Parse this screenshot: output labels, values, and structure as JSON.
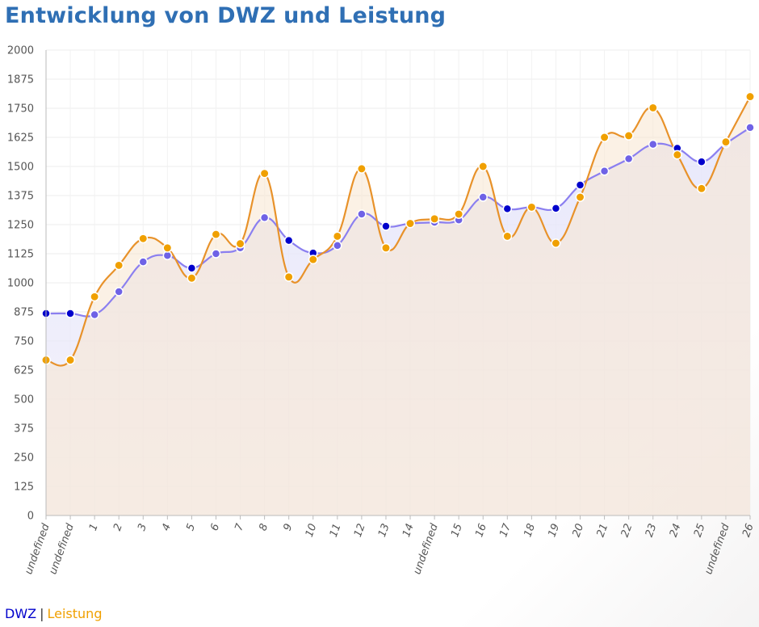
{
  "chart_data": {
    "type": "line",
    "title": "Entwicklung von DWZ und Leistung",
    "xlabel": "",
    "ylabel": "",
    "ylim": [
      0,
      2000
    ],
    "yticks": [
      0,
      125,
      250,
      375,
      500,
      625,
      750,
      875,
      1000,
      1125,
      1250,
      1375,
      1500,
      1625,
      1750,
      1875,
      2000
    ],
    "categories": [
      "undefined",
      "undefined",
      "1",
      "2",
      "3",
      "4",
      "5",
      "6",
      "7",
      "8",
      "9",
      "10",
      "11",
      "12",
      "13",
      "14",
      "undefined",
      "15",
      "16",
      "17",
      "18",
      "19",
      "20",
      "21",
      "22",
      "23",
      "24",
      "25",
      "undefined",
      "26"
    ],
    "grid": true,
    "legend_position": "bottom-left",
    "series": [
      {
        "name": "DWZ",
        "color": "#0000cc",
        "values": [
          868,
          868,
          863,
          962,
          1090,
          1117,
          1063,
          1125,
          1150,
          1280,
          1182,
          1128,
          1160,
          1295,
          1243,
          1255,
          1260,
          1270,
          1368,
          1318,
          1325,
          1320,
          1420,
          1480,
          1533,
          1595,
          1578,
          1520,
          1598,
          1667
        ]
      },
      {
        "name": "Leistung",
        "color": "#f0a000",
        "values": [
          668,
          668,
          940,
          1075,
          1190,
          1150,
          1020,
          1208,
          1168,
          1470,
          1025,
          1100,
          1200,
          1490,
          1150,
          1255,
          1275,
          1295,
          1500,
          1200,
          1325,
          1170,
          1368,
          1625,
          1632,
          1752,
          1550,
          1405,
          1605,
          1800
        ]
      }
    ]
  },
  "legend": {
    "dwz_label": "DWZ",
    "separator": "|",
    "leistung_label": "Leistung"
  }
}
